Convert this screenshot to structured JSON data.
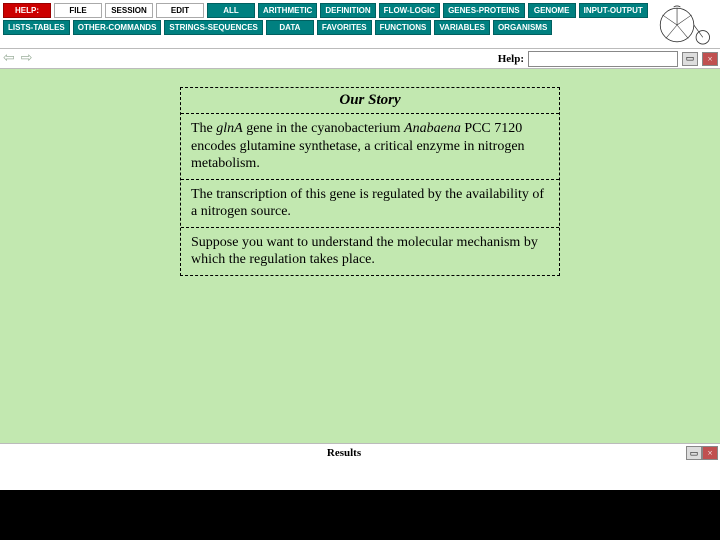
{
  "toolbar": {
    "row1": [
      {
        "label": "HELP:",
        "style": "red",
        "name": "help-button"
      },
      {
        "label": "FILE",
        "style": "white",
        "name": "file-menu"
      },
      {
        "label": "SESSION",
        "style": "white",
        "name": "session-menu"
      },
      {
        "label": "EDIT",
        "style": "white",
        "name": "edit-menu"
      },
      {
        "label": "ALL",
        "style": "teal",
        "name": "all-button"
      },
      {
        "label": "ARITHMETIC",
        "style": "teal",
        "name": "arithmetic-button"
      },
      {
        "label": "DEFINITION",
        "style": "teal",
        "name": "definition-button"
      },
      {
        "label": "FLOW-LOGIC",
        "style": "teal",
        "name": "flow-logic-button"
      },
      {
        "label": "GENES-PROTEINS",
        "style": "teal",
        "name": "genes-proteins-button"
      },
      {
        "label": "GENOME",
        "style": "teal",
        "name": "genome-button"
      },
      {
        "label": "INPUT-OUTPUT",
        "style": "teal",
        "name": "input-output-button"
      }
    ],
    "row2": [
      {
        "label": "LISTS-TABLES",
        "style": "teal",
        "name": "lists-tables-button"
      },
      {
        "label": "OTHER-COMMANDS",
        "style": "teal",
        "name": "other-commands-button"
      },
      {
        "label": "STRINGS-SEQUENCES",
        "style": "teal",
        "name": "strings-sequences-button"
      },
      {
        "label": "DATA",
        "style": "teal",
        "name": "data-button"
      },
      {
        "label": "FAVORITES",
        "style": "teal",
        "name": "favorites-button"
      },
      {
        "label": "FUNCTIONS",
        "style": "teal",
        "name": "functions-button"
      },
      {
        "label": "VARIABLES",
        "style": "teal",
        "name": "variables-button"
      },
      {
        "label": "ORGANISMS",
        "style": "teal",
        "name": "organisms-button"
      }
    ]
  },
  "midbar": {
    "help_label": "Help:",
    "help_value": ""
  },
  "story": {
    "title": "Our Story",
    "paragraphs": [
      "The glnA gene in the cyanobacterium Anabaena PCC 7120 encodes glutamine synthetase, a critical enzyme in nitrogen metabolism.",
      "The transcription of this gene is regulated by the availability of a nitrogen source.",
      "Suppose you want to understand the molecular mechanism by which the regulation takes place."
    ]
  },
  "results": {
    "label": "Results"
  },
  "colors": {
    "content_bg": "#c2e8b0",
    "teal": "#008080",
    "red": "#cc0000"
  }
}
